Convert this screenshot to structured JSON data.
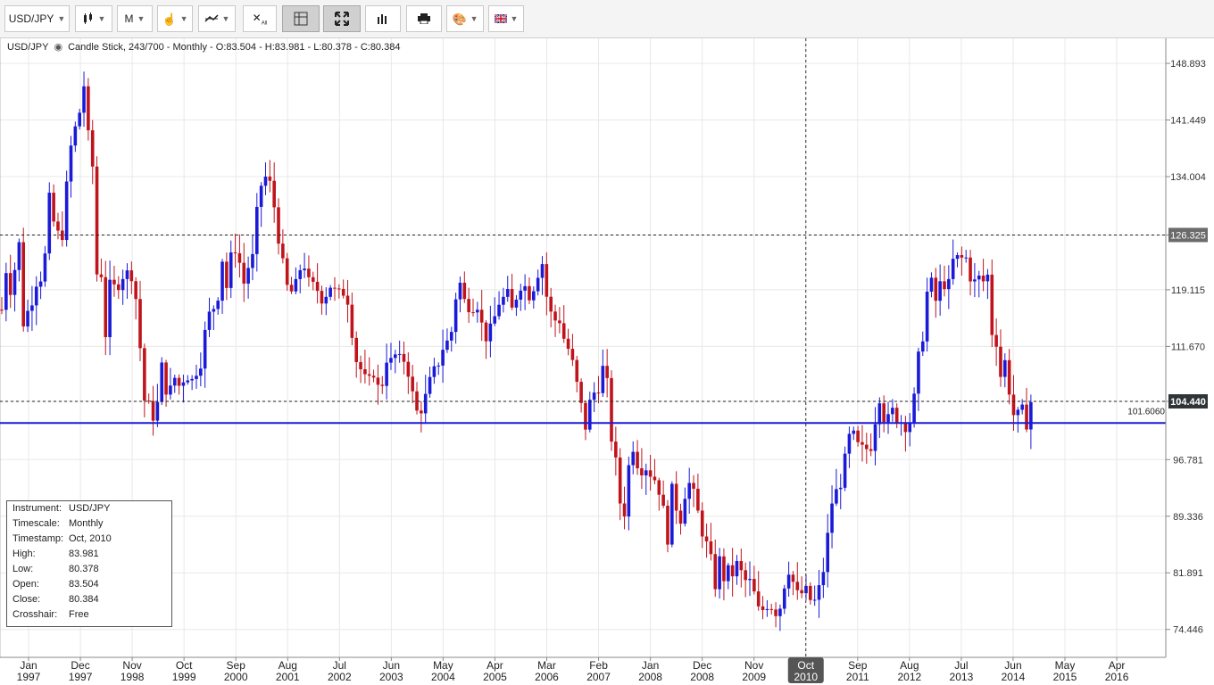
{
  "toolbar": {
    "instrument": "USD/JPY",
    "timescale": "M",
    "buttons": [
      "bar-type",
      "timescale",
      "cursor-mode",
      "indicators",
      "clear-all",
      "grid",
      "fullscreen",
      "chart-style",
      "print",
      "theme",
      "language"
    ],
    "active": [
      "grid",
      "fullscreen"
    ]
  },
  "header": {
    "instrument": "USD/JPY",
    "description": "Candle Stick, 243/700 - Monthly - O:83.504 - H:83.981 - L:80.378 - C:80.384"
  },
  "chart_data": {
    "type": "candlestick",
    "instrument": "USD/JPY",
    "timescale": "Monthly",
    "y_ticks": [
      "148.893",
      "141.449",
      "134.004",
      "126.325",
      "119.115",
      "111.670",
      "104.440",
      "96.781",
      "89.336",
      "81.891",
      "74.446"
    ],
    "x_ticks": [
      {
        "m": "Jan",
        "y": "1997"
      },
      {
        "m": "Dec",
        "y": "1997"
      },
      {
        "m": "Nov",
        "y": "1998"
      },
      {
        "m": "Oct",
        "y": "1999"
      },
      {
        "m": "Sep",
        "y": "2000"
      },
      {
        "m": "Aug",
        "y": "2001"
      },
      {
        "m": "Jul",
        "y": "2002"
      },
      {
        "m": "Jun",
        "y": "2003"
      },
      {
        "m": "May",
        "y": "2004"
      },
      {
        "m": "Apr",
        "y": "2005"
      },
      {
        "m": "Mar",
        "y": "2006"
      },
      {
        "m": "Feb",
        "y": "2007"
      },
      {
        "m": "Jan",
        "y": "2008"
      },
      {
        "m": "Dec",
        "y": "2008"
      },
      {
        "m": "Nov",
        "y": "2009"
      },
      {
        "m": "Oct",
        "y": "2010"
      },
      {
        "m": "Sep",
        "y": "2011"
      },
      {
        "m": "Aug",
        "y": "2012"
      },
      {
        "m": "Jul",
        "y": "2013"
      },
      {
        "m": "Jun",
        "y": "2014"
      },
      {
        "m": "May",
        "y": "2015"
      },
      {
        "m": "Apr",
        "y": "2016"
      }
    ],
    "crosshair_x_label": {
      "m": "Oct",
      "y": "2010"
    },
    "dashed_levels": [
      {
        "value": 126.325,
        "label": "126.325"
      },
      {
        "value": 104.44,
        "label": "104.440"
      }
    ],
    "horizontal_line": {
      "value": 101.6
    },
    "overlapping_label": "101.6060",
    "colors": {
      "up": "#1a1ad8",
      "down": "#c0141c",
      "line": "#1a1ad8",
      "grid": "#e8e8e8"
    },
    "grid": true,
    "path": [
      [
        1997.0,
        116.5
      ],
      [
        1997.09,
        122.3
      ],
      [
        1997.2,
        118.1
      ],
      [
        1997.32,
        127.2
      ],
      [
        1997.4,
        114.6
      ],
      [
        1997.5,
        116.2
      ],
      [
        1997.6,
        118.4
      ],
      [
        1997.7,
        121.3
      ],
      [
        1997.8,
        120.5
      ],
      [
        1997.92,
        131.0
      ],
      [
        1998.02,
        127.3
      ],
      [
        1998.15,
        125.3
      ],
      [
        1998.26,
        133.1
      ],
      [
        1998.35,
        138.8
      ],
      [
        1998.48,
        141.6
      ],
      [
        1998.55,
        144.5
      ],
      [
        1998.62,
        147.6
      ],
      [
        1998.67,
        138.9
      ],
      [
        1998.76,
        135.0
      ],
      [
        1998.8,
        120.1
      ],
      [
        1998.9,
        123.3
      ],
      [
        1999.0,
        113.2
      ],
      [
        1999.1,
        120.4
      ],
      [
        1999.2,
        118.8
      ],
      [
        1999.3,
        121.3
      ],
      [
        1999.4,
        120.9
      ],
      [
        1999.48,
        121.9
      ],
      [
        1999.55,
        120.2
      ],
      [
        1999.64,
        114.9
      ],
      [
        1999.73,
        104.9
      ],
      [
        1999.82,
        103.8
      ],
      [
        1999.9,
        102.9
      ],
      [
        1999.98,
        102.0
      ],
      [
        2000.07,
        109.5
      ],
      [
        2000.15,
        106.4
      ],
      [
        2000.25,
        105.7
      ],
      [
        2000.35,
        107.8
      ],
      [
        2000.45,
        106.0
      ],
      [
        2000.55,
        108.8
      ],
      [
        2000.65,
        106.7
      ],
      [
        2000.75,
        108.6
      ],
      [
        2000.85,
        110.0
      ],
      [
        2000.95,
        114.6
      ],
      [
        2001.05,
        116.7
      ],
      [
        2001.15,
        117.2
      ],
      [
        2001.25,
        123.5
      ],
      [
        2001.35,
        119.0
      ],
      [
        2001.45,
        124.7
      ],
      [
        2001.55,
        124.8
      ],
      [
        2001.65,
        119.4
      ],
      [
        2001.75,
        122.1
      ],
      [
        2001.85,
        123.3
      ],
      [
        2001.95,
        131.0
      ],
      [
        2002.05,
        134.4
      ],
      [
        2002.12,
        133.5
      ],
      [
        2002.2,
        132.6
      ],
      [
        2002.3,
        128.2
      ],
      [
        2002.38,
        124.2
      ],
      [
        2002.48,
        119.6
      ],
      [
        2002.58,
        118.8
      ],
      [
        2002.66,
        119.1
      ],
      [
        2002.76,
        122.0
      ],
      [
        2002.86,
        122.6
      ],
      [
        2002.95,
        118.8
      ],
      [
        2003.05,
        119.9
      ],
      [
        2003.15,
        118.1
      ],
      [
        2003.25,
        118.6
      ],
      [
        2003.33,
        119.9
      ],
      [
        2003.43,
        118.7
      ],
      [
        2003.52,
        118.3
      ],
      [
        2003.62,
        119.2
      ],
      [
        2003.72,
        117.0
      ],
      [
        2003.8,
        110.5
      ],
      [
        2003.9,
        109.2
      ],
      [
        2004.0,
        107.2
      ],
      [
        2004.1,
        106.8
      ],
      [
        2004.2,
        109.0
      ],
      [
        2004.3,
        104.2
      ],
      [
        2004.4,
        110.6
      ],
      [
        2004.5,
        109.4
      ],
      [
        2004.6,
        110.5
      ],
      [
        2004.7,
        109.4
      ],
      [
        2004.8,
        110.4
      ],
      [
        2004.9,
        106.1
      ],
      [
        2005.0,
        102.9
      ],
      [
        2005.1,
        103.7
      ],
      [
        2005.18,
        104.9
      ],
      [
        2005.28,
        107.3
      ],
      [
        2005.38,
        108.7
      ],
      [
        2005.48,
        110.8
      ],
      [
        2005.55,
        112.5
      ],
      [
        2005.65,
        111.8
      ],
      [
        2005.72,
        116.4
      ],
      [
        2005.82,
        120.9
      ],
      [
        2005.9,
        117.7
      ],
      [
        2005.98,
        117.3
      ],
      [
        2006.08,
        117.2
      ],
      [
        2006.18,
        117.4
      ],
      [
        2006.28,
        113.8
      ],
      [
        2006.38,
        112.7
      ],
      [
        2006.48,
        114.5
      ],
      [
        2006.58,
        117.5
      ],
      [
        2006.68,
        117.9
      ],
      [
        2006.76,
        118.3
      ],
      [
        2006.85,
        116.3
      ],
      [
        2006.95,
        118.9
      ],
      [
        2007.05,
        120.6
      ],
      [
        2007.15,
        118.3
      ],
      [
        2007.25,
        119.4
      ],
      [
        2007.35,
        121.6
      ],
      [
        2007.42,
        123.3
      ],
      [
        2007.5,
        118.7
      ],
      [
        2007.6,
        115.8
      ],
      [
        2007.7,
        115.0
      ],
      [
        2007.8,
        115.4
      ],
      [
        2007.88,
        111.0
      ],
      [
        2007.98,
        111.7
      ],
      [
        2008.05,
        106.8
      ],
      [
        2008.15,
        106.2
      ],
      [
        2008.23,
        99.8
      ],
      [
        2008.33,
        103.8
      ],
      [
        2008.42,
        105.5
      ],
      [
        2008.5,
        106.2
      ],
      [
        2008.6,
        108.7
      ],
      [
        2008.7,
        106.0
      ],
      [
        2008.78,
        98.4
      ],
      [
        2008.87,
        95.5
      ],
      [
        2008.94,
        90.7
      ],
      [
        2009.03,
        89.9
      ],
      [
        2009.12,
        97.6
      ],
      [
        2009.2,
        99.0
      ],
      [
        2009.3,
        95.3
      ],
      [
        2009.4,
        96.3
      ],
      [
        2009.48,
        95.4
      ],
      [
        2009.58,
        94.6
      ],
      [
        2009.68,
        93.1
      ],
      [
        2009.77,
        89.8
      ],
      [
        2009.86,
        86.3
      ],
      [
        2009.94,
        93.0
      ],
      [
        2010.03,
        90.3
      ],
      [
        2010.12,
        88.9
      ],
      [
        2010.2,
        93.4
      ],
      [
        2010.28,
        93.6
      ],
      [
        2010.38,
        91.3
      ],
      [
        2010.48,
        88.4
      ],
      [
        2010.58,
        86.0
      ],
      [
        2010.68,
        83.5
      ],
      [
        2010.77,
        80.4
      ],
      [
        2010.86,
        83.7
      ],
      [
        2010.94,
        81.2
      ],
      [
        2011.03,
        82.0
      ],
      [
        2011.12,
        81.8
      ],
      [
        2011.2,
        83.1
      ],
      [
        2011.3,
        81.2
      ],
      [
        2011.38,
        80.6
      ],
      [
        2011.48,
        80.5
      ],
      [
        2011.58,
        76.8
      ],
      [
        2011.68,
        77.0
      ],
      [
        2011.78,
        78.0
      ],
      [
        2011.86,
        77.6
      ],
      [
        2011.94,
        76.9
      ],
      [
        2012.03,
        77.6
      ],
      [
        2012.12,
        81.2
      ],
      [
        2012.2,
        82.8
      ],
      [
        2012.3,
        79.8
      ],
      [
        2012.38,
        78.4
      ],
      [
        2012.48,
        79.8
      ],
      [
        2012.58,
        78.5
      ],
      [
        2012.68,
        77.9
      ],
      [
        2012.78,
        79.8
      ],
      [
        2012.86,
        82.5
      ],
      [
        2012.94,
        86.7
      ],
      [
        2013.03,
        91.7
      ],
      [
        2013.12,
        92.6
      ],
      [
        2013.2,
        94.2
      ],
      [
        2013.3,
        97.4
      ],
      [
        2013.38,
        100.5
      ],
      [
        2013.48,
        99.1
      ],
      [
        2013.56,
        97.8
      ],
      [
        2013.66,
        98.2
      ],
      [
        2013.76,
        98.3
      ],
      [
        2013.86,
        102.4
      ],
      [
        2013.94,
        105.3
      ],
      [
        2014.03,
        102.3
      ],
      [
        2014.12,
        101.8
      ],
      [
        2014.2,
        103.2
      ],
      [
        2014.3,
        102.2
      ],
      [
        2014.38,
        101.8
      ],
      [
        2014.48,
        101.3
      ],
      [
        2014.58,
        102.8
      ],
      [
        2014.68,
        109.6
      ],
      [
        2014.76,
        112.3
      ],
      [
        2014.85,
        118.6
      ],
      [
        2014.94,
        119.8
      ],
      [
        2015.03,
        117.5
      ],
      [
        2015.12,
        120.0
      ],
      [
        2015.2,
        120.1
      ],
      [
        2015.3,
        119.4
      ],
      [
        2015.38,
        124.1
      ],
      [
        2015.48,
        122.5
      ],
      [
        2015.58,
        124.0
      ],
      [
        2015.68,
        121.2
      ],
      [
        2015.76,
        119.9
      ],
      [
        2015.85,
        120.6
      ],
      [
        2015.94,
        120.2
      ],
      [
        2016.03,
        121.0
      ],
      [
        2016.12,
        112.6
      ],
      [
        2016.2,
        112.5
      ],
      [
        2016.3,
        106.4
      ],
      [
        2016.38,
        110.7
      ],
      [
        2016.48,
        103.3
      ],
      [
        2016.58,
        102.0
      ],
      [
        2016.68,
        103.3
      ],
      [
        2016.76,
        101.3
      ],
      [
        2016.86,
        104.4
      ]
    ]
  },
  "infobox": {
    "rows": [
      {
        "k": "Instrument:",
        "v": "USD/JPY"
      },
      {
        "k": "Timescale:",
        "v": "Monthly"
      },
      {
        "k": "Timestamp:",
        "v": "Oct, 2010"
      },
      {
        "k": "High:",
        "v": "83.981"
      },
      {
        "k": "Low:",
        "v": "80.378"
      },
      {
        "k": "Open:",
        "v": "83.504"
      },
      {
        "k": "Close:",
        "v": "80.384"
      },
      {
        "k": "Crosshair:",
        "v": "Free"
      }
    ]
  }
}
